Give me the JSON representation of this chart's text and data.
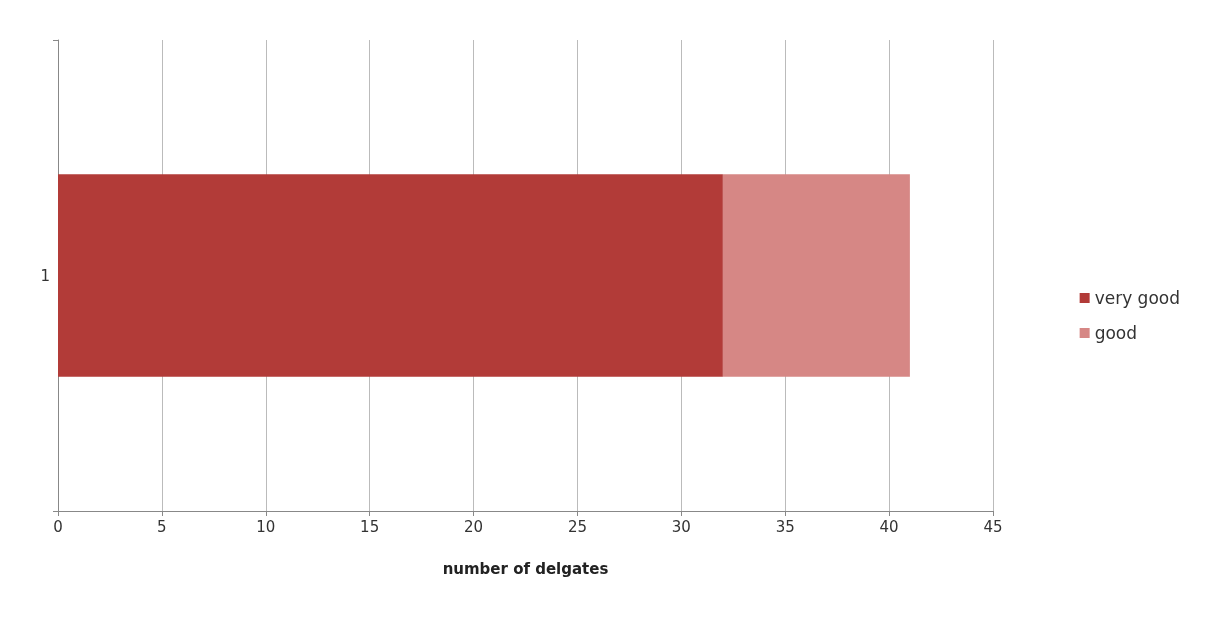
{
  "chart_data": {
    "type": "bar",
    "orientation": "horizontal",
    "stacked": true,
    "xlabel": "number of delgates",
    "categories": [
      "1"
    ],
    "series": [
      {
        "name": "very good",
        "color": "#b23b38",
        "values": [
          32
        ]
      },
      {
        "name": "good",
        "color": "#d68785",
        "values": [
          9
        ]
      }
    ],
    "xlim": [
      0,
      45
    ],
    "xticks": [
      0,
      5,
      10,
      15,
      20,
      25,
      30,
      35,
      40,
      45
    ],
    "grid": "x",
    "legend": "right"
  }
}
